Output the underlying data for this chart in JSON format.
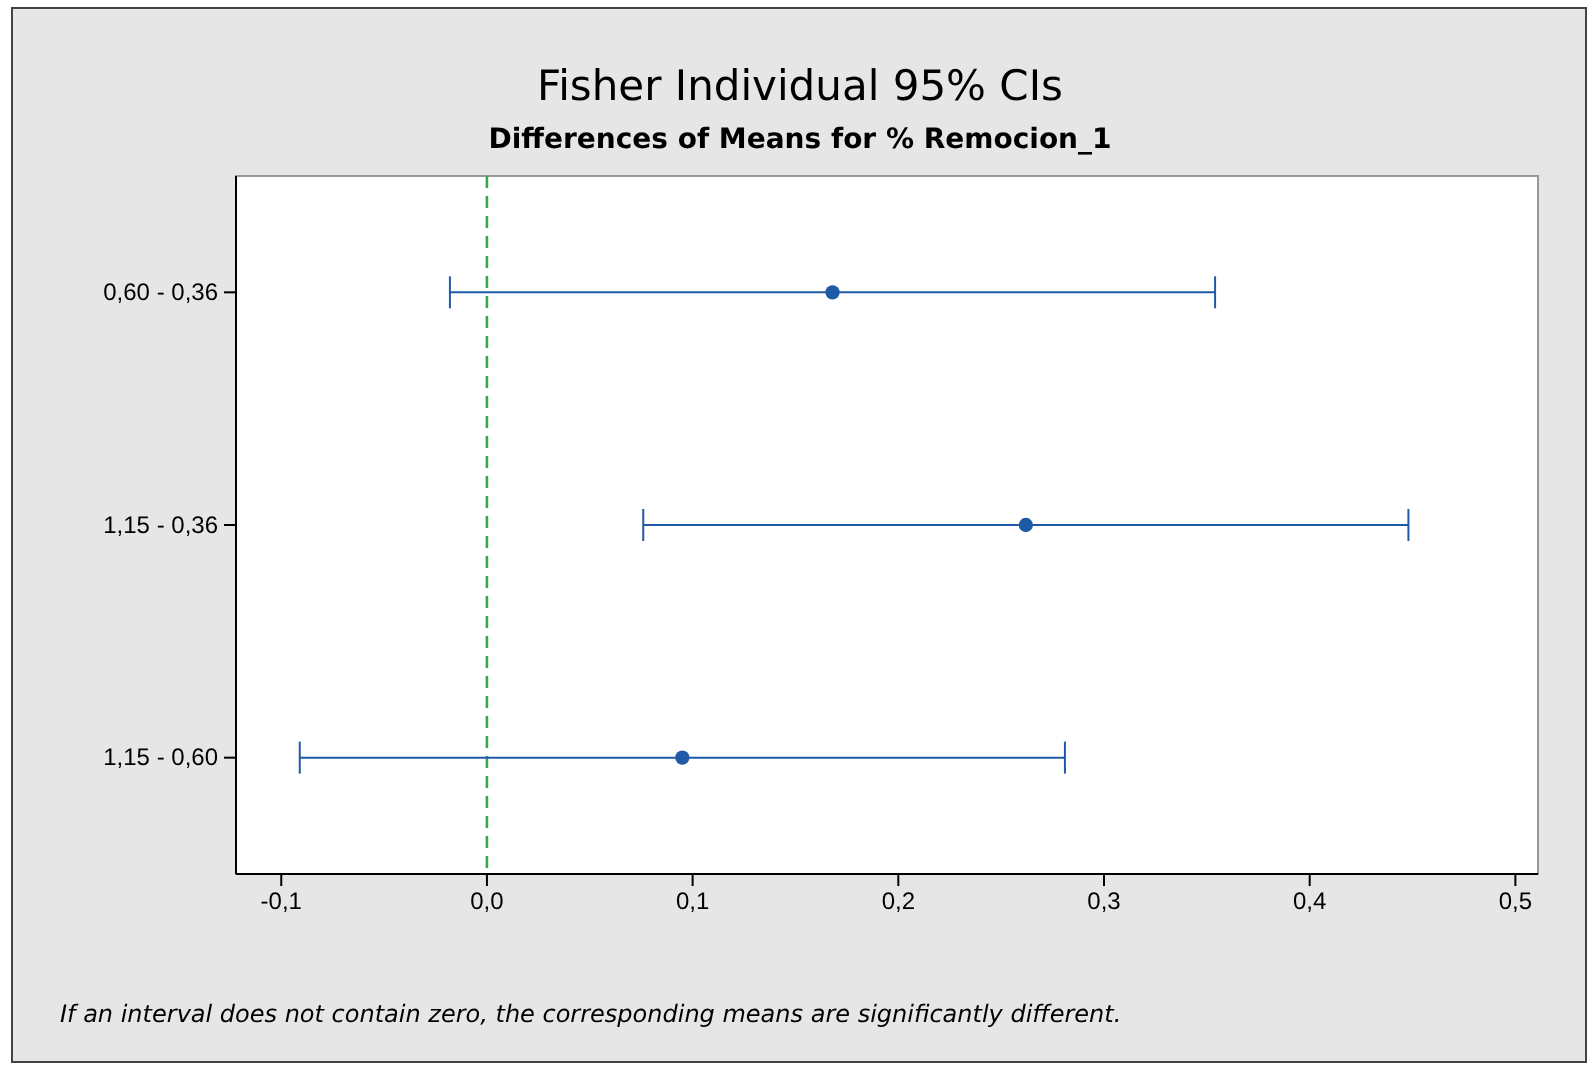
{
  "chart_data": {
    "type": "scatter",
    "orientation": "horizontal",
    "title": "Fisher Individual 95% CIs",
    "subtitle": "Differences of Means for % Remocion_1",
    "categories": [
      "0,60 - 0,36",
      "1,15 - 0,36",
      "1,15 - 0,60"
    ],
    "values": [
      0.168,
      0.262,
      0.095
    ],
    "errors": [
      0.186,
      0.186,
      0.186
    ],
    "color": "#1f5aa6",
    "marker": "circle",
    "grid": false,
    "xlim": [
      -0.122,
      0.511
    ],
    "xticks": [
      {
        "value": -0.1,
        "label": "-0,1"
      },
      {
        "value": 0,
        "label": "0,0"
      },
      {
        "value": 0.1,
        "label": "0,1"
      },
      {
        "value": 0.2,
        "label": "0,2"
      },
      {
        "value": 0.3,
        "label": "0,3"
      },
      {
        "value": 0.4,
        "label": "0,4"
      },
      {
        "value": 0.5,
        "label": "0,5"
      }
    ],
    "ref_lines": [
      {
        "axis": "x",
        "value": 0,
        "color": "#3aa655",
        "line_style": "dashed"
      }
    ],
    "annotations": [
      "If an interval does not contain zero, the corresponding means are significantly different."
    ]
  }
}
